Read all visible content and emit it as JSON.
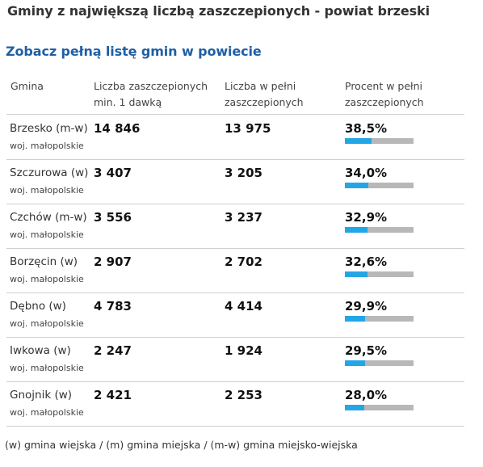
{
  "title": "Gminy z największą liczbą zaszczepionych - powiat brzeski",
  "link_text": "Zobacz pełną listę gmin w powiecie",
  "headers": {
    "gmina": "Gmina",
    "dose1_line1": "Liczba zaszczepionych",
    "dose1_line2": "min. 1 dawką",
    "full_line1": "Liczba w pełni",
    "full_line2": "zaszczepionych",
    "pct_line1": "Procent w pełni",
    "pct_line2": "zaszczepionych"
  },
  "rows": [
    {
      "name": "Brzesko (m-w)",
      "woj": "woj. małopolskie",
      "dose1": "14 846",
      "full": "13 975",
      "pct": "38,5%",
      "pct_value": 38.5
    },
    {
      "name": "Szczurowa (w)",
      "woj": "woj. małopolskie",
      "dose1": "3 407",
      "full": "3 205",
      "pct": "34,0%",
      "pct_value": 34.0
    },
    {
      "name": "Czchów (m-w)",
      "woj": "woj. małopolskie",
      "dose1": "3 556",
      "full": "3 237",
      "pct": "32,9%",
      "pct_value": 32.9
    },
    {
      "name": "Borzęcin (w)",
      "woj": "woj. małopolskie",
      "dose1": "2 907",
      "full": "2 702",
      "pct": "32,6%",
      "pct_value": 32.6
    },
    {
      "name": "Dębno (w)",
      "woj": "woj. małopolskie",
      "dose1": "4 783",
      "full": "4 414",
      "pct": "29,9%",
      "pct_value": 29.9
    },
    {
      "name": "Iwkowa (w)",
      "woj": "woj. małopolskie",
      "dose1": "2 247",
      "full": "1 924",
      "pct": "29,5%",
      "pct_value": 29.5
    },
    {
      "name": "Gnojnik (w)",
      "woj": "woj. małopolskie",
      "dose1": "2 421",
      "full": "2 253",
      "pct": "28,0%",
      "pct_value": 28.0
    }
  ],
  "footer": "(w) gmina wiejska / (m) gmina miejska / (m-w) gmina miejsko-wiejska",
  "colors": {
    "bar_fill": "#23a6e6",
    "bar_track": "#b8b8b8",
    "link": "#1f5fa6"
  }
}
